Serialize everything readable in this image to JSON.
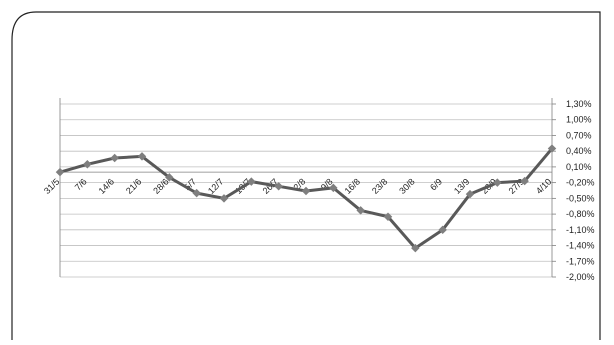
{
  "chart_data": {
    "type": "line",
    "categories": [
      "31/5",
      "7/6",
      "14/6",
      "21/6",
      "28/6",
      "5/7",
      "12/7",
      "19/7",
      "26/7",
      "2/8",
      "9/8",
      "16/8",
      "23/8",
      "30/8",
      "6/9",
      "13/9",
      "20/9",
      "27/9",
      "4/10"
    ],
    "series": [
      {
        "values": [
          0.0,
          0.15,
          0.27,
          0.3,
          -0.1,
          -0.4,
          -0.5,
          -0.18,
          -0.27,
          -0.36,
          -0.3,
          -0.73,
          -0.85,
          -1.45,
          -1.1,
          -0.42,
          -0.2,
          -0.17,
          0.45
        ]
      }
    ],
    "y_ticks": [
      "1,30%",
      "1,00%",
      "0,70%",
      "0,40%",
      "0,10%",
      "-0,20%",
      "-0,50%",
      "-0,80%",
      "-1,10%",
      "-1,40%",
      "-1,70%",
      "-2,00%"
    ],
    "ylim": [
      -2.0,
      1.3
    ],
    "y_axis_side": "right",
    "grid": true,
    "legend": "none",
    "colors": {
      "line": "#595959",
      "marker": "#7f7f7f",
      "grid": "#bfbfbf",
      "frame": "#222222"
    }
  }
}
